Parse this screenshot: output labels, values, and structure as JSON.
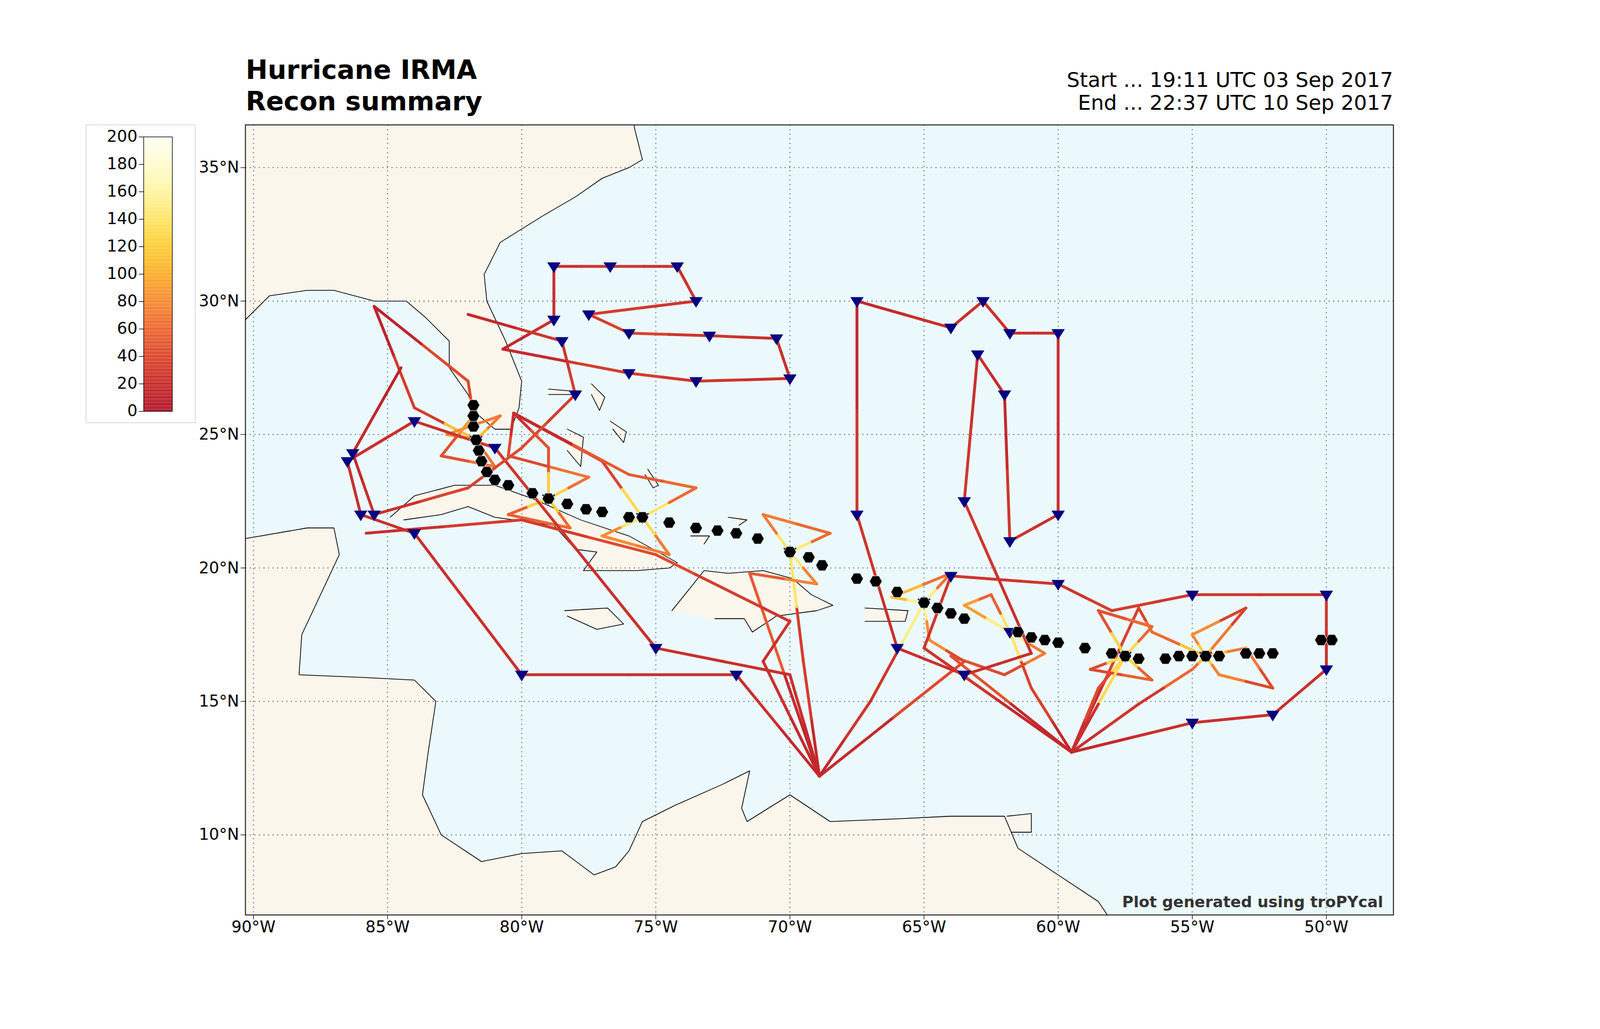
{
  "chart_data": {
    "type": "map",
    "title": "Hurricane IRMA",
    "subtitle": "Recon summary",
    "annotations": [
      "Start ... 19:11 UTC 03 Sep 2017",
      "End ... 22:37 UTC 10 Sep 2017"
    ],
    "caption": "Plot generated using troPYcal",
    "xlim": [
      -90.3,
      -47.5
    ],
    "ylim": [
      7.0,
      36.6
    ],
    "xticks": [
      {
        "value": -90,
        "label": "90°W"
      },
      {
        "value": -85,
        "label": "85°W"
      },
      {
        "value": -80,
        "label": "80°W"
      },
      {
        "value": -75,
        "label": "75°W"
      },
      {
        "value": -70,
        "label": "70°W"
      },
      {
        "value": -65,
        "label": "65°W"
      },
      {
        "value": -60,
        "label": "60°W"
      },
      {
        "value": -55,
        "label": "55°W"
      },
      {
        "value": -50,
        "label": "50°W"
      }
    ],
    "yticks": [
      {
        "value": 10,
        "label": "10°N"
      },
      {
        "value": 15,
        "label": "15°N"
      },
      {
        "value": 20,
        "label": "20°N"
      },
      {
        "value": 25,
        "label": "25°N"
      },
      {
        "value": 30,
        "label": "30°N"
      },
      {
        "value": 35,
        "label": "35°N"
      }
    ],
    "grid": true,
    "colorbar": {
      "range": [
        0,
        200
      ],
      "ticks": [
        0,
        20,
        40,
        60,
        80,
        100,
        120,
        140,
        160,
        180,
        200
      ],
      "colors": [
        "#b2182b",
        "#e0452e",
        "#f98c3a",
        "#ffd21f",
        "#fff9b0",
        "#fffff2"
      ]
    },
    "storm_track": {
      "marker": "hexagon",
      "color": "#000000",
      "lon": [
        -49.8,
        -50.2,
        -52.0,
        -52.5,
        -53.0,
        -54.0,
        -54.5,
        -55.0,
        -55.5,
        -56.0,
        -57.0,
        -57.5,
        -58.0,
        -59.0,
        -60.0,
        -60.5,
        -61.0,
        -61.5,
        -63.5,
        -64.0,
        -64.5,
        -65.0,
        -66.0,
        -66.8,
        -67.5,
        -68.8,
        -69.3,
        -70.0,
        -71.2,
        -72.0,
        -72.7,
        -73.5,
        -74.5,
        -75.5,
        -76.0,
        -77.0,
        -77.6,
        -78.3,
        -79.0,
        -79.6,
        -80.5,
        -81.0,
        -81.3,
        -81.5,
        -81.6,
        -81.7,
        -81.8,
        -81.8,
        -81.8
      ],
      "lat": [
        17.3,
        17.3,
        16.8,
        16.8,
        16.8,
        16.7,
        16.7,
        16.7,
        16.7,
        16.6,
        16.6,
        16.7,
        16.8,
        17.0,
        17.2,
        17.3,
        17.4,
        17.6,
        18.1,
        18.3,
        18.5,
        18.7,
        19.1,
        19.5,
        19.6,
        20.1,
        20.4,
        20.6,
        21.1,
        21.3,
        21.4,
        21.5,
        21.7,
        21.9,
        21.9,
        22.1,
        22.2,
        22.4,
        22.6,
        22.8,
        23.1,
        23.3,
        23.6,
        24.0,
        24.4,
        24.8,
        25.3,
        25.7,
        26.1
      ]
    },
    "recon_flights": [
      {
        "points": [
          [
            -59.5,
            13.1,
            20
          ],
          [
            -57,
            14.9,
            25
          ],
          [
            -55,
            16.2,
            60
          ],
          [
            -54.5,
            16.7,
            110
          ],
          [
            -54,
            17.3,
            70
          ],
          [
            -53,
            18.5,
            35
          ],
          [
            -55,
            17.5,
            80
          ],
          [
            -54.5,
            16.7,
            120
          ],
          [
            -54,
            16,
            75
          ],
          [
            -52,
            15.5,
            40
          ],
          [
            -53,
            17,
            70
          ],
          [
            -54.5,
            16.7,
            115
          ],
          [
            -56.5,
            17.6,
            60
          ],
          [
            -57,
            18.5,
            35
          ],
          [
            -59.5,
            13.1,
            20
          ]
        ]
      },
      {
        "points": [
          [
            -59.5,
            13.1,
            20
          ],
          [
            -58.5,
            15.5,
            40
          ],
          [
            -57.5,
            16.7,
            130
          ],
          [
            -56.5,
            17.8,
            60
          ],
          [
            -58.5,
            18.4,
            45
          ],
          [
            -57.5,
            16.7,
            125
          ],
          [
            -56.5,
            15.8,
            55
          ],
          [
            -58.8,
            16.2,
            40
          ],
          [
            -57.5,
            16.7,
            130
          ],
          [
            -59.5,
            13.1,
            20
          ]
        ]
      },
      {
        "points": [
          [
            -59.5,
            13.1,
            15
          ],
          [
            -61,
            15.5,
            35
          ],
          [
            -61.8,
            17.6,
            140
          ],
          [
            -62.5,
            19.0,
            55
          ],
          [
            -63.5,
            18.6,
            90
          ],
          [
            -61.8,
            17.6,
            150
          ],
          [
            -60.5,
            16.8,
            70
          ],
          [
            -62,
            16.0,
            40
          ],
          [
            -64,
            16.7,
            45
          ],
          [
            -59.5,
            13.1,
            15
          ]
        ]
      },
      {
        "points": [
          [
            -68.9,
            12.2,
            15
          ],
          [
            -67,
            15,
            25
          ],
          [
            -65,
            18.7,
            150
          ],
          [
            -64,
            19.8,
            65
          ],
          [
            -66.2,
            18.9,
            110
          ],
          [
            -65,
            18.7,
            155
          ],
          [
            -64.8,
            17.3,
            80
          ],
          [
            -63.5,
            16.5,
            40
          ],
          [
            -68.9,
            12.2,
            15
          ]
        ]
      },
      {
        "points": [
          [
            -68.9,
            12.2,
            15
          ],
          [
            -69.5,
            16.5,
            30
          ],
          [
            -70,
            20.6,
            140
          ],
          [
            -71,
            22,
            70
          ],
          [
            -68.5,
            21.3,
            60
          ],
          [
            -70,
            20.6,
            145
          ],
          [
            -69,
            19.4,
            75
          ],
          [
            -71.5,
            19.8,
            50
          ],
          [
            -68.9,
            12.2,
            15
          ]
        ]
      },
      {
        "points": [
          [
            -80.3,
            25.8,
            15
          ],
          [
            -77,
            24,
            35
          ],
          [
            -75.5,
            21.9,
            130
          ],
          [
            -74.5,
            20.5,
            70
          ],
          [
            -77,
            21.2,
            80
          ],
          [
            -75.5,
            21.9,
            140
          ],
          [
            -73.5,
            23,
            60
          ],
          [
            -76,
            23.5,
            50
          ],
          [
            -80.3,
            25.8,
            15
          ]
        ]
      },
      {
        "points": [
          [
            -80.3,
            25.8,
            20
          ],
          [
            -79,
            24.5,
            45
          ],
          [
            -79,
            22.6,
            120
          ],
          [
            -78.2,
            21.5,
            60
          ],
          [
            -80.5,
            22,
            55
          ],
          [
            -79,
            22.6,
            125
          ],
          [
            -77.5,
            23.4,
            65
          ],
          [
            -80.5,
            24.2,
            40
          ],
          [
            -80.3,
            25.8,
            20
          ]
        ]
      },
      {
        "points": [
          [
            -85.5,
            29.8,
            10
          ],
          [
            -84,
            26,
            30
          ],
          [
            -81.7,
            24.8,
            110
          ],
          [
            -80.8,
            25.7,
            70
          ],
          [
            -82.8,
            25,
            80
          ],
          [
            -81.7,
            24.8,
            105
          ],
          [
            -81,
            23.8,
            65
          ],
          [
            -83,
            24.2,
            45
          ],
          [
            -81.8,
            25.7,
            85
          ],
          [
            -82,
            27,
            40
          ],
          [
            -85.5,
            29.8,
            10
          ]
        ]
      },
      {
        "points": [
          [
            -80.7,
            28.2,
            15
          ],
          [
            -78.8,
            29.3,
            20
          ],
          [
            -78.8,
            31.3,
            20
          ],
          [
            -76.7,
            31.3,
            25
          ],
          [
            -74.2,
            31.3,
            20
          ],
          [
            -73.5,
            30,
            25
          ],
          [
            -77.5,
            29.5,
            30
          ],
          [
            -76,
            28.8,
            35
          ],
          [
            -73,
            28.7,
            25
          ],
          [
            -70.5,
            28.6,
            20
          ],
          [
            -70,
            27.1,
            20
          ],
          [
            -73.5,
            27,
            25
          ],
          [
            -76,
            27.3,
            30
          ],
          [
            -80.7,
            28.2,
            15
          ]
        ]
      },
      {
        "points": [
          [
            -61,
            16.8,
            20
          ],
          [
            -63.5,
            16,
            20
          ],
          [
            -66,
            17,
            20
          ],
          [
            -67.5,
            22,
            25
          ],
          [
            -67.5,
            30,
            15
          ],
          [
            -64,
            29,
            20
          ],
          [
            -62.8,
            30,
            20
          ],
          [
            -61.8,
            28.8,
            20
          ],
          [
            -60,
            28.8,
            20
          ],
          [
            -60,
            22,
            20
          ],
          [
            -61.8,
            21,
            25
          ],
          [
            -62,
            26.5,
            15
          ],
          [
            -63,
            28,
            20
          ],
          [
            -63.5,
            22.5,
            25
          ],
          [
            -61,
            16.8,
            20
          ]
        ]
      },
      {
        "points": [
          [
            -68.9,
            12.2,
            15
          ],
          [
            -72,
            16,
            20
          ],
          [
            -80,
            16,
            20
          ],
          [
            -84,
            21.3,
            20
          ],
          [
            -86,
            22,
            20
          ],
          [
            -86.5,
            24,
            20
          ],
          [
            -84,
            25.5,
            20
          ],
          [
            -81,
            24.5,
            25
          ],
          [
            -75,
            17,
            20
          ],
          [
            -70,
            16,
            20
          ],
          [
            -68.9,
            12.2,
            15
          ]
        ]
      },
      {
        "points": [
          [
            -85.8,
            21.3,
            20
          ],
          [
            -80,
            21.8,
            30
          ],
          [
            -75,
            20.5,
            40
          ],
          [
            -72,
            19,
            30
          ],
          [
            -70,
            18,
            25
          ],
          [
            -71,
            16.5,
            20
          ],
          [
            -68.9,
            12.2,
            15
          ]
        ]
      },
      {
        "points": [
          [
            -59.5,
            13.1,
            15
          ],
          [
            -55,
            14.2,
            20
          ],
          [
            -52,
            14.5,
            20
          ],
          [
            -50,
            16.2,
            20
          ],
          [
            -50,
            19,
            25
          ],
          [
            -55,
            19,
            25
          ],
          [
            -58,
            18.4,
            30
          ],
          [
            -60,
            19.4,
            25
          ],
          [
            -64,
            19.7,
            25
          ],
          [
            -65,
            17,
            25
          ],
          [
            -59.5,
            13.1,
            15
          ]
        ]
      },
      {
        "points": [
          [
            -84.5,
            27.5,
            10
          ],
          [
            -86.3,
            24.3,
            15
          ],
          [
            -85.5,
            22,
            20
          ],
          [
            -82,
            23,
            35
          ],
          [
            -80,
            24.5,
            40
          ],
          [
            -78,
            26.5,
            30
          ],
          [
            -78.5,
            28.5,
            25
          ],
          [
            -82,
            29.5,
            15
          ]
        ]
      }
    ],
    "dropsondes": {
      "marker": "triangle",
      "color": "#000080",
      "lon": [
        -78.8,
        -78.8,
        -76.7,
        -74.2,
        -73.5,
        -77.5,
        -76,
        -73,
        -70.5,
        -70,
        -73.5,
        -76,
        -63.5,
        -66,
        -67.5,
        -67.5,
        -64,
        -62.8,
        -61.8,
        -60,
        -60,
        -61.8,
        -62,
        -63,
        -63.5,
        -72,
        -80,
        -84,
        -86,
        -86.5,
        -84,
        -81,
        -75,
        -55,
        -52,
        -50,
        -50,
        -55,
        -60,
        -64,
        -54.5,
        -57.5,
        -61.8,
        -65,
        -70,
        -75.5,
        -79,
        -81.7,
        -86.3,
        -85.5,
        -78,
        -78.5
      ],
      "lat": [
        29.3,
        31.3,
        31.3,
        31.3,
        30,
        29.5,
        28.8,
        28.7,
        28.6,
        27.1,
        27,
        27.3,
        16,
        17,
        22,
        30,
        29,
        30,
        28.8,
        28.8,
        22,
        21,
        26.5,
        28,
        22.5,
        16,
        16,
        21.3,
        22,
        24,
        25.5,
        24.5,
        17,
        14.2,
        14.5,
        16.2,
        19,
        19,
        19.4,
        19.7,
        16.7,
        16.7,
        17.6,
        18.7,
        20.6,
        21.9,
        22.6,
        24.8,
        24.3,
        22,
        26.5,
        28.5
      ]
    }
  }
}
